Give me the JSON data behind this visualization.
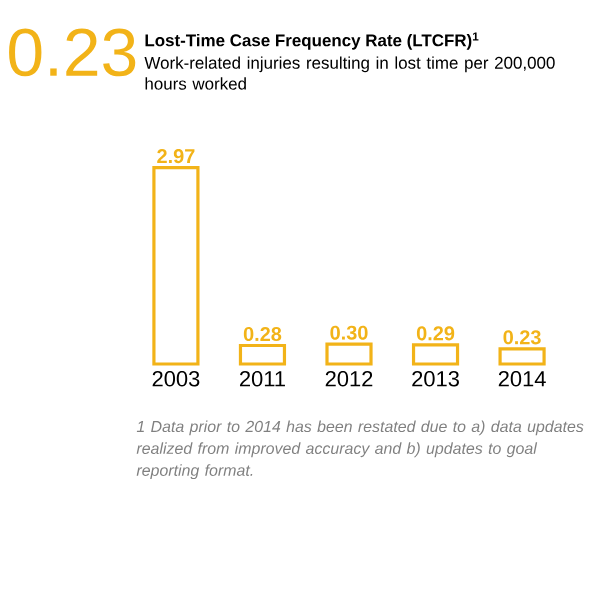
{
  "chart_data": {
    "type": "bar",
    "title": "Lost-Time Case Frequency Rate (LTCFR)$^{1}$",
    "subtitle": "Work-related injuries resulting in lost time per 200,000 hours worked",
    "categories": [
      "2003",
      "2011",
      "2012",
      "2013",
      "2014"
    ],
    "values": [
      2.97,
      0.28,
      0.3,
      0.29,
      0.23
    ],
    "value_labels": [
      "2.97",
      "0.28",
      "0.30",
      "0.29",
      "0.23"
    ],
    "color": "#f2b318",
    "annotations": [
      "0.23",
      "1 Data prior to 2014 has been restated due to a) data updates realized from improved accuracy and b) updates to goal reporting format."
    ]
  }
}
